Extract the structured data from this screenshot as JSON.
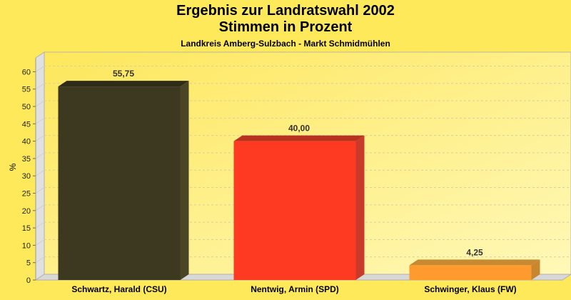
{
  "chart_data": {
    "type": "bar",
    "title": "Ergebnis zur Landratswahl 2002",
    "subtitle": "Stimmen in Prozent",
    "subtitle2": "Landkreis Amberg-Sulzbach - Markt Schmidmühlen",
    "xlabel": "",
    "ylabel": "%",
    "ylim": [
      0,
      64
    ],
    "yticks": [
      0,
      5,
      10,
      15,
      20,
      25,
      30,
      35,
      40,
      45,
      50,
      55,
      60
    ],
    "grid": true,
    "categories": [
      "Schwartz, Harald (CSU)",
      "Nentwig, Armin (SPD)",
      "Schwinger, Klaus (FW)"
    ],
    "values": [
      55.75,
      40.0,
      4.25
    ],
    "value_labels": [
      "55,75",
      "40,00",
      "4,25"
    ],
    "colors": [
      "#3d3920",
      "#ff3a22",
      "#ff9a2e"
    ],
    "side_colors": [
      "#4a4525",
      "#c83a2a",
      "#c8862e"
    ],
    "top_colors": [
      "#2e2b18",
      "#b83222",
      "#c88a30"
    ]
  }
}
